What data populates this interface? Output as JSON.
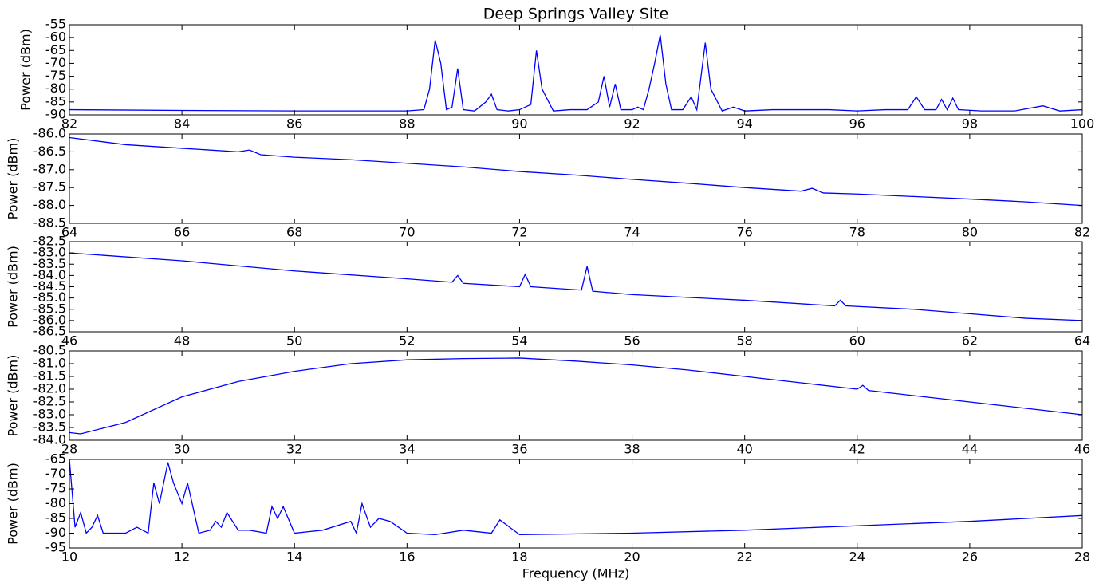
{
  "chart_data": [
    {
      "type": "line",
      "title": "Deep Springs Valley Site",
      "ylabel": "Power (dBm)",
      "color": "#0000ff",
      "x": [
        82,
        84,
        86,
        88,
        88.3,
        88.4,
        88.5,
        88.6,
        88.7,
        88.8,
        88.9,
        89.0,
        89.2,
        89.4,
        89.5,
        89.6,
        89.8,
        90.0,
        90.2,
        90.3,
        90.4,
        90.6,
        90.9,
        91.2,
        91.4,
        91.5,
        91.6,
        91.7,
        91.8,
        92.0,
        92.1,
        92.2,
        92.3,
        92.4,
        92.5,
        92.6,
        92.7,
        92.9,
        93.05,
        93.15,
        93.3,
        93.4,
        93.6,
        93.8,
        94.0,
        94.5,
        95,
        95.5,
        96,
        96.5,
        96.9,
        97.05,
        97.2,
        97.4,
        97.5,
        97.6,
        97.7,
        97.8,
        98.2,
        98.8,
        99.3,
        99.6,
        100
      ],
      "values": [
        -88,
        -88.3,
        -88.5,
        -88.5,
        -88,
        -80,
        -61,
        -70,
        -88,
        -87,
        -72,
        -88,
        -88.5,
        -85,
        -82,
        -88,
        -88.5,
        -88,
        -86,
        -65,
        -80,
        -88.5,
        -88,
        -88,
        -85,
        -75,
        -87,
        -78,
        -88,
        -88,
        -87,
        -88,
        -80,
        -70,
        -59,
        -78,
        -88,
        -88,
        -83,
        -88,
        -62,
        -80,
        -88.5,
        -87,
        -88.5,
        -88,
        -88,
        -88,
        -88.5,
        -88,
        -88,
        -83,
        -88,
        -88,
        -84,
        -88,
        -83.5,
        -88,
        -88.5,
        -88.5,
        -86.5,
        -88.5,
        -88
      ],
      "xlim": [
        82,
        100
      ],
      "xticks": [
        82,
        84,
        86,
        88,
        90,
        92,
        94,
        96,
        98,
        100
      ],
      "ylim": [
        -90,
        -55
      ],
      "yticks": [
        -90,
        -85,
        -80,
        -75,
        -70,
        -65,
        -60,
        -55
      ]
    },
    {
      "type": "line",
      "ylabel": "Power (dBm)",
      "color": "#0000ff",
      "x": [
        64,
        65,
        66,
        67,
        67.2,
        67.4,
        68,
        69,
        70,
        71,
        72,
        73,
        74,
        75,
        76,
        77,
        77.2,
        77.4,
        78,
        79,
        80,
        81,
        82
      ],
      "values": [
        -86.1,
        -86.3,
        -86.4,
        -86.5,
        -86.45,
        -86.58,
        -86.65,
        -86.72,
        -86.82,
        -86.92,
        -87.05,
        -87.15,
        -87.27,
        -87.38,
        -87.5,
        -87.6,
        -87.52,
        -87.65,
        -87.68,
        -87.75,
        -87.82,
        -87.9,
        -88.0
      ],
      "xlim": [
        64,
        82
      ],
      "xticks": [
        64,
        66,
        68,
        70,
        72,
        74,
        76,
        78,
        80,
        82
      ],
      "ylim": [
        -88.5,
        -86.0
      ],
      "yticks": [
        {
          "value": -88.5,
          "label": "-88.5"
        },
        {
          "value": -88,
          "label": "-88.0"
        },
        {
          "value": -87.5,
          "label": "-87.5"
        },
        {
          "value": -87,
          "label": "-87.0"
        },
        {
          "value": -86.5,
          "label": "-86.5"
        },
        {
          "value": -86,
          "label": "-86.0"
        }
      ]
    },
    {
      "type": "line",
      "ylabel": "Power (dBm)",
      "color": "#0000ff",
      "x": [
        46,
        48,
        50,
        52,
        52.8,
        52.9,
        53.0,
        54.0,
        54.1,
        54.2,
        55.1,
        55.2,
        55.3,
        56,
        58,
        59.6,
        59.7,
        59.8,
        61,
        62,
        63,
        64
      ],
      "values": [
        -83.0,
        -83.35,
        -83.8,
        -84.15,
        -84.3,
        -84.0,
        -84.35,
        -84.5,
        -83.95,
        -84.5,
        -84.65,
        -83.6,
        -84.7,
        -84.85,
        -85.1,
        -85.35,
        -85.1,
        -85.35,
        -85.5,
        -85.7,
        -85.9,
        -86.0
      ],
      "xlim": [
        46,
        64
      ],
      "xticks": [
        46,
        48,
        50,
        52,
        54,
        56,
        58,
        60,
        62,
        64
      ],
      "ylim": [
        -86.5,
        -82.5
      ],
      "yticks": [
        {
          "value": -86.5,
          "label": "-86.5"
        },
        {
          "value": -86,
          "label": "-86.0"
        },
        {
          "value": -85.5,
          "label": "-85.5"
        },
        {
          "value": -85,
          "label": "-85.0"
        },
        {
          "value": -84.5,
          "label": "-84.5"
        },
        {
          "value": -84,
          "label": "-84.0"
        },
        {
          "value": -83.5,
          "label": "-83.5"
        },
        {
          "value": -83,
          "label": "-83.0"
        },
        {
          "value": -82.5,
          "label": "-82.5"
        }
      ]
    },
    {
      "type": "line",
      "ylabel": "Power (dBm)",
      "color": "#0000ff",
      "x": [
        28,
        28.2,
        29,
        30,
        31,
        32,
        33,
        34,
        35,
        36,
        37,
        38,
        39,
        40,
        41,
        42,
        42.1,
        42.2,
        43,
        44,
        45,
        46
      ],
      "values": [
        -83.7,
        -83.75,
        -83.3,
        -82.3,
        -81.7,
        -81.3,
        -81.0,
        -80.85,
        -80.8,
        -80.78,
        -80.9,
        -81.05,
        -81.25,
        -81.5,
        -81.75,
        -82.0,
        -81.85,
        -82.05,
        -82.25,
        -82.5,
        -82.75,
        -83.0
      ],
      "xlim": [
        28,
        46
      ],
      "xticks": [
        28,
        30,
        32,
        34,
        36,
        38,
        40,
        42,
        44,
        46
      ],
      "ylim": [
        -84.0,
        -80.5
      ],
      "yticks": [
        {
          "value": -84,
          "label": "-84.0"
        },
        {
          "value": -83.5,
          "label": "-83.5"
        },
        {
          "value": -83,
          "label": "-83.0"
        },
        {
          "value": -82.5,
          "label": "-82.5"
        },
        {
          "value": -82,
          "label": "-82.0"
        },
        {
          "value": -81.5,
          "label": "-81.5"
        },
        {
          "value": -81,
          "label": "-81.0"
        },
        {
          "value": -80.5,
          "label": "-80.5"
        }
      ]
    },
    {
      "type": "line",
      "ylabel": "Power (dBm)",
      "xlabel": "Frequency (MHz)",
      "color": "#0000ff",
      "x": [
        10,
        10.1,
        10.2,
        10.3,
        10.4,
        10.5,
        10.6,
        11,
        11.2,
        11.4,
        11.5,
        11.6,
        11.75,
        11.85,
        12.0,
        12.1,
        12.3,
        12.5,
        12.6,
        12.7,
        12.8,
        13,
        13.2,
        13.5,
        13.6,
        13.7,
        13.8,
        14,
        14.5,
        15,
        15.1,
        15.2,
        15.35,
        15.5,
        15.7,
        16,
        16.5,
        17,
        17.5,
        17.65,
        18,
        20,
        22,
        24,
        26,
        28
      ],
      "values": [
        -65,
        -88,
        -83,
        -90,
        -88,
        -84,
        -90,
        -90,
        -88,
        -90,
        -73,
        -80,
        -66,
        -73,
        -80,
        -73,
        -90,
        -89,
        -86,
        -88,
        -83,
        -89,
        -89,
        -90,
        -81,
        -85,
        -81,
        -90,
        -89,
        -86,
        -90,
        -80,
        -88,
        -85,
        -86,
        -90,
        -90.5,
        -89,
        -90,
        -85.5,
        -90.5,
        -90,
        -89,
        -87.5,
        -86,
        -84
      ],
      "xlim": [
        10,
        28
      ],
      "xticks": [
        10,
        12,
        14,
        16,
        18,
        20,
        22,
        24,
        26,
        28
      ],
      "ylim": [
        -95,
        -65
      ],
      "yticks": [
        -95,
        -90,
        -85,
        -80,
        -75,
        -70,
        -65
      ]
    }
  ]
}
